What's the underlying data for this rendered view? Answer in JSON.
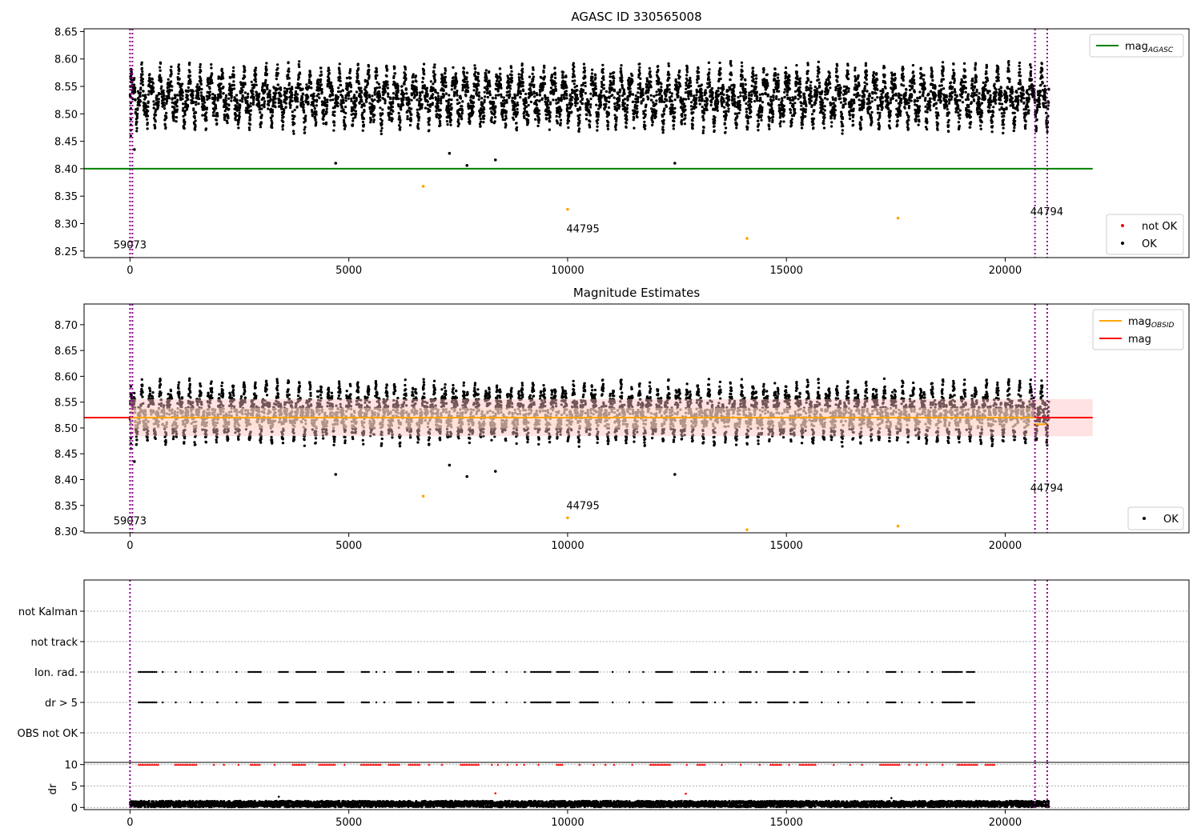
{
  "chart_data": [
    {
      "type": "scatter",
      "title": "AGASC ID 330565008",
      "xlim": [
        -1050,
        24200
      ],
      "ylim": [
        8.238,
        8.655
      ],
      "yticks": [
        "8.25",
        "8.30",
        "8.35",
        "8.40",
        "8.45",
        "8.50",
        "8.55",
        "8.60",
        "8.65"
      ],
      "xticks": [
        "0",
        "5000",
        "10000",
        "15000",
        "20000"
      ],
      "band": {
        "center": 8.53,
        "amplitude": 0.052,
        "low": 8.455,
        "high": 8.605,
        "x": [
          0,
          21000
        ]
      },
      "outliers_ok": [
        {
          "x": 100,
          "y": 8.435
        },
        {
          "x": 4700,
          "y": 8.41
        },
        {
          "x": 7300,
          "y": 8.428
        },
        {
          "x": 7700,
          "y": 8.406
        },
        {
          "x": 8350,
          "y": 8.416
        },
        {
          "x": 12450,
          "y": 8.41
        }
      ],
      "outliers_orange": [
        {
          "x": 6700,
          "y": 8.368
        },
        {
          "x": 10000,
          "y": 8.326
        },
        {
          "x": 14100,
          "y": 8.273
        },
        {
          "x": 17550,
          "y": 8.31
        }
      ],
      "reference_lines": [
        {
          "name": "mag_AGASC",
          "y": 8.4,
          "x": [
            -1050,
            22000
          ],
          "color": "#008000"
        }
      ],
      "obsid_lines": [
        {
          "x": 0
        },
        {
          "x": 20680
        },
        {
          "x": 20960
        }
      ],
      "annotations": [
        {
          "text": "59073",
          "x": 0,
          "y": 8.255
        },
        {
          "text": "44795",
          "x": 10350,
          "y": 8.284
        },
        {
          "text": "44794",
          "x": 20950,
          "y": 8.315
        }
      ],
      "legend_upper": {
        "placement": "top-right",
        "entries": [
          {
            "label": "mag",
            "subscript": "AGASC",
            "color": "#008000"
          }
        ]
      },
      "legend_lower": {
        "placement": "bottom-right",
        "entries": [
          {
            "label": "not OK",
            "color": "#ff0000"
          },
          {
            "label": "OK",
            "color": "#000000"
          }
        ]
      }
    },
    {
      "type": "scatter",
      "title": "Magnitude Estimates",
      "xlim": [
        -1050,
        24200
      ],
      "ylim": [
        8.297,
        8.74
      ],
      "yticks": [
        "8.30",
        "8.35",
        "8.40",
        "8.45",
        "8.50",
        "8.55",
        "8.60",
        "8.65",
        "8.70"
      ],
      "xticks": [
        "0",
        "5000",
        "10000",
        "15000",
        "20000"
      ],
      "band": {
        "center": 8.53,
        "amplitude": 0.052,
        "low": 8.455,
        "high": 8.605,
        "x": [
          0,
          21000
        ]
      },
      "outliers_ok": [
        {
          "x": 100,
          "y": 8.435
        },
        {
          "x": 4700,
          "y": 8.41
        },
        {
          "x": 7300,
          "y": 8.428
        },
        {
          "x": 7700,
          "y": 8.406
        },
        {
          "x": 8350,
          "y": 8.416
        },
        {
          "x": 12450,
          "y": 8.41
        }
      ],
      "outliers_orange": [
        {
          "x": 6700,
          "y": 8.368
        },
        {
          "x": 10000,
          "y": 8.326
        },
        {
          "x": 14100,
          "y": 8.303
        },
        {
          "x": 17550,
          "y": 8.31
        }
      ],
      "shaded_regions": [
        {
          "y": [
            8.484,
            8.556
          ],
          "x": [
            0,
            22000
          ],
          "color": "#ffc0c0"
        },
        {
          "y": [
            8.499,
            8.539
          ],
          "x": [
            0,
            20700
          ],
          "color": "#ffdfc8"
        }
      ],
      "reference_lines": [
        {
          "name": "mag",
          "y": 8.52,
          "x": [
            -1050,
            22000
          ],
          "color": "#ff0000"
        },
        {
          "name": "mag_OBSID",
          "y": 8.52,
          "x": [
            0,
            20700
          ],
          "color": "#ffa500"
        },
        {
          "name": "mag_OBSID",
          "y": 8.507,
          "x": [
            20650,
            20990
          ],
          "color": "#ffa500"
        }
      ],
      "obsid_lines": [
        {
          "x": 0
        },
        {
          "x": 20680
        },
        {
          "x": 20960
        }
      ],
      "annotations": [
        {
          "text": "59073",
          "x": 0,
          "y": 8.313
        },
        {
          "text": "44795",
          "x": 10350,
          "y": 8.343
        },
        {
          "text": "44794",
          "x": 20950,
          "y": 8.377
        }
      ],
      "legend_upper": {
        "placement": "top-right",
        "entries": [
          {
            "label": "mag",
            "subscript": "OBSID",
            "color": "#ffa500"
          },
          {
            "label": "mag",
            "subscript": "",
            "color": "#ff0000"
          }
        ]
      },
      "legend_lower": {
        "placement": "bottom-right",
        "entries": [
          {
            "label": "OK",
            "color": "#000000"
          }
        ]
      }
    },
    {
      "type": "scatter",
      "xlim": [
        -1050,
        24200
      ],
      "categories": [
        "OBS not OK",
        "dr > 5",
        "Ion. rad.",
        "not track",
        "not Kalman"
      ],
      "xticks": [],
      "flag_x_ranges": [
        [
          200,
          19600
        ]
      ],
      "obsid_lines": [
        {
          "x": 0
        },
        {
          "x": 20680
        },
        {
          "x": 20960
        }
      ]
    },
    {
      "type": "scatter",
      "xlim": [
        -1050,
        24200
      ],
      "ylim": [
        -0.5,
        10.5
      ],
      "ylabel": "dr",
      "yticks": [
        "0",
        "5",
        "10"
      ],
      "xticks": [
        "0",
        "5000",
        "10000",
        "15000",
        "20000"
      ],
      "clipped_value": 10,
      "outliers": [
        {
          "x": 3400,
          "y": 2.5,
          "color": "#000000"
        },
        {
          "x": 8350,
          "y": 3.3,
          "color": "#ff0000"
        },
        {
          "x": 12700,
          "y": 3.2,
          "color": "#ff0000"
        },
        {
          "x": 17400,
          "y": 2.2,
          "color": "#000000"
        }
      ],
      "obsid_lines": [
        {
          "x": 0
        },
        {
          "x": 20680
        },
        {
          "x": 20960
        }
      ]
    }
  ]
}
